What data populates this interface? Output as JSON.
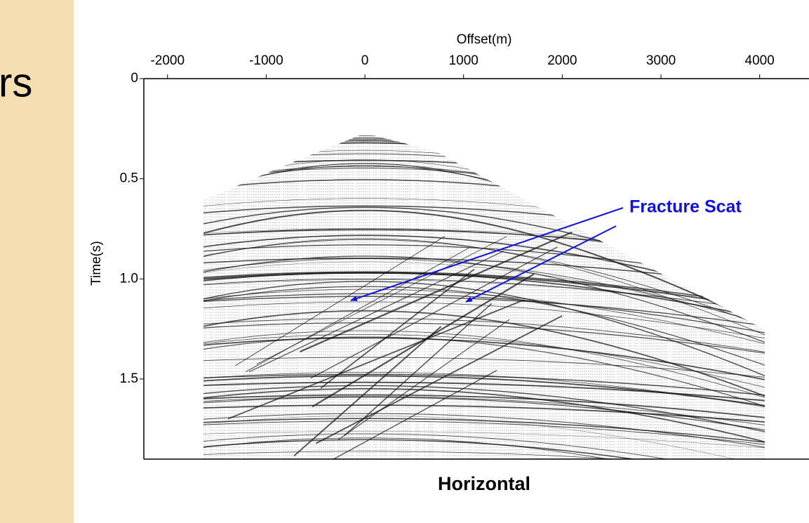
{
  "slide": {
    "title_fragment": "rs"
  },
  "chart_data": {
    "type": "seismic",
    "x_label": "Offset(m)",
    "y_label": "Time(s)",
    "caption": "Horizontal",
    "annotation": "Fracture Scat",
    "xlim": [
      -2240,
      4500
    ],
    "xticks": [
      -2000,
      -1000,
      0,
      1000,
      2000,
      3000,
      4000
    ],
    "ylim": [
      0,
      1.9
    ],
    "yticks": [
      0,
      0.5,
      {
        "value": 1,
        "label": "1.0"
      },
      1.5
    ],
    "annotation_color": "#1010e0"
  }
}
